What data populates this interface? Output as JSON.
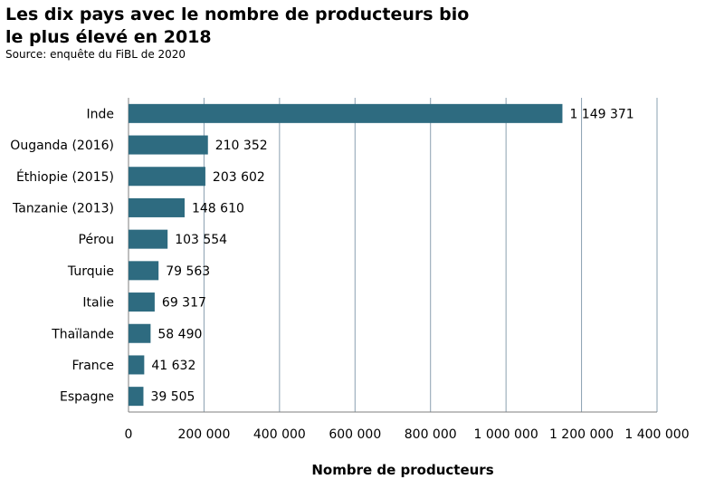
{
  "header": {
    "title": "Les dix pays avec le nombre de producteurs bio\nle plus élevé en 2018",
    "source": "Source: enquête du FiBL de 2020"
  },
  "colors": {
    "bar": "#2e6b80",
    "grid": "#8aa0b0",
    "axis": "#7f7f7f"
  },
  "chart_data": {
    "type": "bar",
    "orientation": "horizontal",
    "title": "Les dix pays avec le nombre de producteurs bio le plus élevé en 2018",
    "subtitle": "Source: enquête du FiBL de 2020",
    "xlabel": "Nombre de producteurs",
    "ylabel": "",
    "categories": [
      "Inde",
      "Ouganda (2016)",
      "Éthiopie (2015)",
      "Tanzanie (2013)",
      "Pérou",
      "Turquie",
      "Italie",
      "Thaïlande",
      "France",
      "Espagne"
    ],
    "values": [
      1149371,
      210352,
      203602,
      148610,
      103554,
      79563,
      69317,
      58490,
      41632,
      39505
    ],
    "value_labels": [
      "1 149 371",
      "210 352",
      "203 602",
      "148 610",
      "103 554",
      "79 563",
      "69 317",
      "58 490",
      "41 632",
      "39 505"
    ],
    "xlim": [
      0,
      1400000
    ],
    "xticks": [
      0,
      200000,
      400000,
      600000,
      800000,
      1000000,
      1200000,
      1400000
    ],
    "xtick_labels": [
      "0",
      "200 000",
      "400 000",
      "600 000",
      "800 000",
      "1 000 000",
      "1 200 000",
      "1 400 000"
    ],
    "grid": true,
    "legend": "none"
  }
}
